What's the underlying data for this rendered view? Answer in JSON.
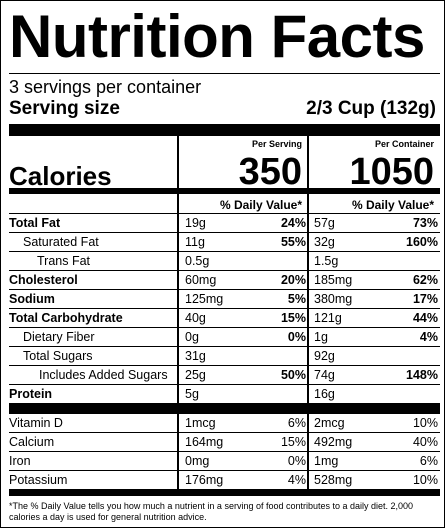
{
  "title": "Nutrition Facts",
  "servings_per_container": "3 servings per container",
  "serving_size_label": "Serving size",
  "serving_size_value": "2/3 Cup (132g)",
  "per_serving_label": "Per Serving",
  "per_container_label": "Per Container",
  "calories_label": "Calories",
  "calories_per_serving": "350",
  "calories_per_container": "1050",
  "dv_header": "% Daily Value*",
  "nutrients": [
    {
      "name": "Total Fat",
      "ps_amt": "19g",
      "ps_pct": "24%",
      "pc_amt": "57g",
      "pc_pct": "73%"
    },
    {
      "name": "Saturated Fat",
      "ps_amt": "11g",
      "ps_pct": "55%",
      "pc_amt": "32g",
      "pc_pct": "160%"
    },
    {
      "name": "Trans Fat",
      "ps_amt": "0.5g",
      "ps_pct": "",
      "pc_amt": "1.5g",
      "pc_pct": ""
    },
    {
      "name": "Cholesterol",
      "ps_amt": "60mg",
      "ps_pct": "20%",
      "pc_amt": "185mg",
      "pc_pct": "62%"
    },
    {
      "name": "Sodium",
      "ps_amt": "125mg",
      "ps_pct": "5%",
      "pc_amt": "380mg",
      "pc_pct": "17%"
    },
    {
      "name": "Total Carbohydrate",
      "ps_amt": "40g",
      "ps_pct": "15%",
      "pc_amt": "121g",
      "pc_pct": "44%"
    },
    {
      "name": "Dietary Fiber",
      "ps_amt": "0g",
      "ps_pct": "0%",
      "pc_amt": "1g",
      "pc_pct": "4%"
    },
    {
      "name": "Total Sugars",
      "ps_amt": "31g",
      "ps_pct": "",
      "pc_amt": "92g",
      "pc_pct": ""
    },
    {
      "name": "Includes Added Sugars",
      "ps_amt": "25g",
      "ps_pct": "50%",
      "pc_amt": "74g",
      "pc_pct": "148%"
    },
    {
      "name": "Protein",
      "ps_amt": "5g",
      "ps_pct": "",
      "pc_amt": "16g",
      "pc_pct": ""
    },
    {
      "name": "Vitamin D",
      "ps_amt": "1mcg",
      "ps_pct": "6%",
      "pc_amt": "2mcg",
      "pc_pct": "10%"
    },
    {
      "name": "Calcium",
      "ps_amt": "164mg",
      "ps_pct": "15%",
      "pc_amt": "492mg",
      "pc_pct": "40%"
    },
    {
      "name": "Iron",
      "ps_amt": "0mg",
      "ps_pct": "0%",
      "pc_amt": "1mg",
      "pc_pct": "6%"
    },
    {
      "name": "Potassium",
      "ps_amt": "176mg",
      "ps_pct": "4%",
      "pc_amt": "528mg",
      "pc_pct": "10%"
    }
  ],
  "footnote": "*The % Daily Value tells you how much a nutrient in a serving of food contributes to a daily diet. 2,000 calories a day is used for general nutrition advice."
}
